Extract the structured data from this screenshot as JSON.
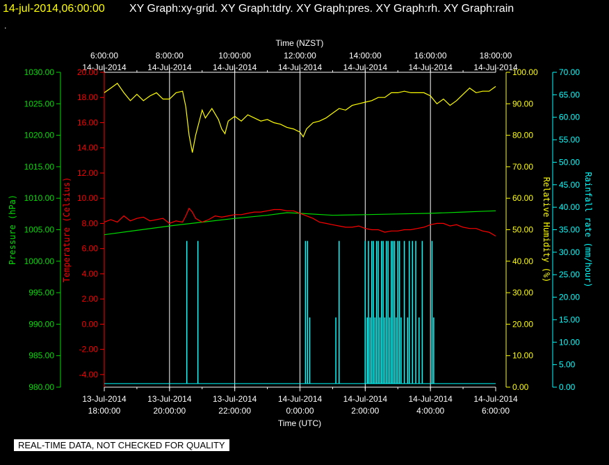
{
  "header": {
    "timestamp": "14-jul-2014,06:00:00",
    "titles": "XY Graph:xy-grid.  XY Graph:tdry.  XY Graph:pres.  XY Graph:rh.  XY Graph:rain",
    "dot": "."
  },
  "disclaimer": "REAL-TIME DATA, NOT CHECKED FOR QUALITY",
  "colors": {
    "background": "#000000",
    "grid": "#ffffff",
    "pressure": "#00dd00",
    "temperature": "#ff0000",
    "humidity": "#ffff00",
    "rain": "#00ffff",
    "axis_text": "#ffffff"
  },
  "chart_data": {
    "type": "line",
    "grid": true,
    "top_axis": {
      "title": "Time (NZST)",
      "ticks": [
        [
          "6:00:00",
          "14-Jul-2014"
        ],
        [
          "8:00:00",
          "14-Jul-2014"
        ],
        [
          "10:00:00",
          "14-Jul-2014"
        ],
        [
          "12:00:00",
          "14-Jul-2014"
        ],
        [
          "14:00:00",
          "14-Jul-2014"
        ],
        [
          "16:00:00",
          "14-Jul-2014"
        ],
        [
          "18:00:00",
          "14-Jul-2014"
        ]
      ]
    },
    "bottom_axis": {
      "title": "Time (UTC)",
      "ticks": [
        [
          "13-Jul-2014",
          "18:00:00"
        ],
        [
          "13-Jul-2014",
          "20:00:00"
        ],
        [
          "13-Jul-2014",
          "22:00:00"
        ],
        [
          "14-Jul-2014",
          "0:00:00"
        ],
        [
          "14-Jul-2014",
          "2:00:00"
        ],
        [
          "14-Jul-2014",
          "4:00:00"
        ],
        [
          "14-Jul-2014",
          "6:00:00"
        ]
      ]
    },
    "x_range_hours": [
      0,
      12
    ],
    "y_axes": {
      "pressure": {
        "label": "Pressure (hPa)",
        "range": [
          980,
          1030
        ],
        "ticks": [
          "980.00",
          "985.00",
          "990.00",
          "995.00",
          "1000.00",
          "1005.00",
          "1010.00",
          "1015.00",
          "1020.00",
          "1025.00",
          "1030.00"
        ]
      },
      "temperature": {
        "label": "Temperature (Celsius)",
        "range": [
          -5,
          20
        ],
        "ticks": [
          "-4.00",
          "-2.00",
          "0.00",
          "2.00",
          "4.00",
          "6.00",
          "8.00",
          "10.00",
          "12.00",
          "14.00",
          "16.00",
          "18.00",
          "20.00"
        ]
      },
      "humidity": {
        "label": "Relative Humidity (%)",
        "range": [
          0,
          100
        ],
        "ticks": [
          "0.00",
          "10.00",
          "20.00",
          "30.00",
          "40.00",
          "50.00",
          "60.00",
          "70.00",
          "80.00",
          "90.00",
          "100.00"
        ]
      },
      "rain": {
        "label": "Rainfall rate (mm/hour)",
        "range": [
          0,
          70
        ],
        "ticks": [
          "0.00",
          "5.00",
          "10.00",
          "15.00",
          "20.00",
          "25.00",
          "30.00",
          "35.00",
          "40.00",
          "45.00",
          "50.00",
          "55.00",
          "60.00",
          "65.00",
          "70.00"
        ]
      }
    },
    "series": {
      "humidity_pct": [
        [
          0.0,
          93.5
        ],
        [
          0.2,
          95.0
        ],
        [
          0.4,
          96.5
        ],
        [
          0.6,
          93.5
        ],
        [
          0.8,
          91.0
        ],
        [
          1.0,
          93.0
        ],
        [
          1.2,
          91.0
        ],
        [
          1.4,
          92.5
        ],
        [
          1.6,
          93.5
        ],
        [
          1.8,
          91.5
        ],
        [
          2.0,
          91.5
        ],
        [
          2.2,
          93.5
        ],
        [
          2.4,
          94.0
        ],
        [
          2.5,
          89.0
        ],
        [
          2.6,
          80.0
        ],
        [
          2.7,
          74.5
        ],
        [
          2.8,
          80.0
        ],
        [
          2.9,
          84.0
        ],
        [
          3.0,
          88.0
        ],
        [
          3.1,
          85.5
        ],
        [
          3.3,
          88.5
        ],
        [
          3.5,
          85.0
        ],
        [
          3.6,
          82.0
        ],
        [
          3.7,
          80.5
        ],
        [
          3.8,
          84.5
        ],
        [
          4.0,
          86.0
        ],
        [
          4.2,
          84.5
        ],
        [
          4.4,
          86.5
        ],
        [
          4.6,
          85.5
        ],
        [
          4.8,
          84.5
        ],
        [
          5.0,
          85.0
        ],
        [
          5.2,
          84.0
        ],
        [
          5.4,
          83.5
        ],
        [
          5.6,
          82.5
        ],
        [
          5.8,
          82.0
        ],
        [
          6.0,
          81.0
        ],
        [
          6.1,
          79.5
        ],
        [
          6.2,
          82.0
        ],
        [
          6.4,
          84.0
        ],
        [
          6.6,
          84.5
        ],
        [
          6.8,
          85.5
        ],
        [
          7.0,
          87.0
        ],
        [
          7.2,
          88.5
        ],
        [
          7.4,
          88.0
        ],
        [
          7.6,
          89.5
        ],
        [
          7.8,
          90.0
        ],
        [
          8.0,
          90.5
        ],
        [
          8.2,
          91.0
        ],
        [
          8.4,
          92.0
        ],
        [
          8.6,
          92.0
        ],
        [
          8.8,
          93.5
        ],
        [
          9.0,
          93.5
        ],
        [
          9.2,
          94.0
        ],
        [
          9.4,
          93.5
        ],
        [
          9.6,
          93.5
        ],
        [
          9.8,
          93.5
        ],
        [
          10.0,
          92.5
        ],
        [
          10.2,
          90.0
        ],
        [
          10.4,
          91.5
        ],
        [
          10.6,
          89.5
        ],
        [
          10.8,
          91.0
        ],
        [
          11.0,
          93.0
        ],
        [
          11.2,
          95.0
        ],
        [
          11.4,
          93.5
        ],
        [
          11.6,
          94.0
        ],
        [
          11.8,
          94.0
        ],
        [
          12.0,
          95.5
        ]
      ],
      "temperature_c": [
        [
          0.0,
          8.1
        ],
        [
          0.2,
          8.3
        ],
        [
          0.4,
          8.1
        ],
        [
          0.6,
          8.6
        ],
        [
          0.8,
          8.2
        ],
        [
          1.0,
          8.4
        ],
        [
          1.2,
          8.5
        ],
        [
          1.4,
          8.2
        ],
        [
          1.6,
          8.3
        ],
        [
          1.8,
          8.4
        ],
        [
          2.0,
          8.0
        ],
        [
          2.2,
          8.2
        ],
        [
          2.4,
          8.1
        ],
        [
          2.5,
          8.6
        ],
        [
          2.6,
          9.2
        ],
        [
          2.7,
          8.9
        ],
        [
          2.8,
          8.4
        ],
        [
          3.0,
          8.1
        ],
        [
          3.2,
          8.3
        ],
        [
          3.4,
          8.6
        ],
        [
          3.6,
          8.5
        ],
        [
          3.8,
          8.6
        ],
        [
          4.0,
          8.7
        ],
        [
          4.2,
          8.7
        ],
        [
          4.4,
          8.8
        ],
        [
          4.6,
          8.9
        ],
        [
          4.8,
          8.9
        ],
        [
          5.0,
          9.0
        ],
        [
          5.2,
          9.1
        ],
        [
          5.4,
          9.1
        ],
        [
          5.6,
          9.0
        ],
        [
          5.8,
          9.0
        ],
        [
          6.0,
          8.8
        ],
        [
          6.2,
          8.6
        ],
        [
          6.4,
          8.4
        ],
        [
          6.6,
          8.1
        ],
        [
          6.8,
          8.0
        ],
        [
          7.0,
          7.9
        ],
        [
          7.2,
          7.8
        ],
        [
          7.4,
          7.7
        ],
        [
          7.6,
          7.7
        ],
        [
          7.8,
          7.8
        ],
        [
          8.0,
          7.6
        ],
        [
          8.2,
          7.5
        ],
        [
          8.4,
          7.5
        ],
        [
          8.6,
          7.3
        ],
        [
          8.8,
          7.4
        ],
        [
          9.0,
          7.4
        ],
        [
          9.2,
          7.5
        ],
        [
          9.4,
          7.5
        ],
        [
          9.6,
          7.6
        ],
        [
          9.8,
          7.7
        ],
        [
          10.0,
          7.9
        ],
        [
          10.2,
          8.0
        ],
        [
          10.4,
          8.0
        ],
        [
          10.6,
          7.8
        ],
        [
          10.8,
          7.9
        ],
        [
          11.0,
          7.7
        ],
        [
          11.2,
          7.6
        ],
        [
          11.4,
          7.6
        ],
        [
          11.6,
          7.4
        ],
        [
          11.8,
          7.3
        ],
        [
          12.0,
          7.0
        ]
      ],
      "pressure_hpa": [
        [
          0.0,
          1004.2
        ],
        [
          1.0,
          1004.9
        ],
        [
          2.0,
          1005.6
        ],
        [
          3.0,
          1006.2
        ],
        [
          4.0,
          1006.8
        ],
        [
          5.0,
          1007.3
        ],
        [
          5.6,
          1007.7
        ],
        [
          6.0,
          1007.6
        ],
        [
          7.0,
          1007.3
        ],
        [
          8.0,
          1007.4
        ],
        [
          9.0,
          1007.5
        ],
        [
          10.0,
          1007.6
        ],
        [
          11.0,
          1007.8
        ],
        [
          11.5,
          1007.9
        ],
        [
          12.0,
          1008.0
        ]
      ],
      "rain_mm_per_hour": {
        "high": 32.5,
        "mid": 15.5,
        "low": 0.8,
        "spikes": [
          [
            2.53,
            "high"
          ],
          [
            2.87,
            "high"
          ],
          [
            6.17,
            "high"
          ],
          [
            6.23,
            "high"
          ],
          [
            6.3,
            "mid"
          ],
          [
            7.1,
            "mid"
          ],
          [
            7.2,
            "high"
          ],
          [
            8.0,
            "high"
          ],
          [
            8.06,
            "mid"
          ],
          [
            8.1,
            "high"
          ],
          [
            8.15,
            "mid"
          ],
          [
            8.2,
            "high"
          ],
          [
            8.25,
            "high"
          ],
          [
            8.3,
            "mid"
          ],
          [
            8.35,
            "high"
          ],
          [
            8.4,
            "high"
          ],
          [
            8.45,
            "mid"
          ],
          [
            8.5,
            "high"
          ],
          [
            8.55,
            "high"
          ],
          [
            8.6,
            "mid"
          ],
          [
            8.65,
            "high"
          ],
          [
            8.7,
            "high"
          ],
          [
            8.75,
            "mid"
          ],
          [
            8.8,
            "high"
          ],
          [
            8.85,
            "high"
          ],
          [
            8.9,
            "high"
          ],
          [
            8.95,
            "mid"
          ],
          [
            9.0,
            "high"
          ],
          [
            9.05,
            "high"
          ],
          [
            9.1,
            "mid"
          ],
          [
            9.2,
            "high"
          ],
          [
            9.3,
            "mid"
          ],
          [
            9.35,
            "high"
          ],
          [
            9.45,
            "high"
          ],
          [
            9.55,
            "high"
          ],
          [
            9.65,
            "mid"
          ],
          [
            9.75,
            "high"
          ],
          [
            10.05,
            "high"
          ],
          [
            10.1,
            "mid"
          ]
        ]
      }
    }
  }
}
